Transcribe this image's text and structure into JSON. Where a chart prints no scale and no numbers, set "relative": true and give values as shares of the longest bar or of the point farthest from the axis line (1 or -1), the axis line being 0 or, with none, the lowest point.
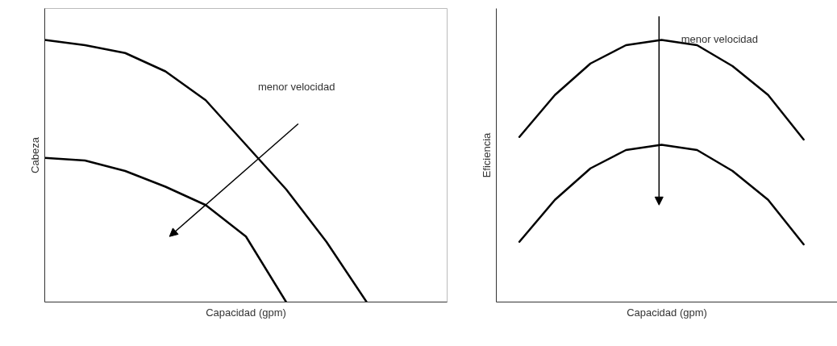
{
  "chart_data": [
    {
      "type": "line",
      "relative": true,
      "xlabel": "Capacidad (gpm)",
      "ylabel": "Cabeza",
      "annotations": [
        "menor velocidad"
      ],
      "categories": [
        null,
        null,
        null,
        null,
        null,
        null,
        null,
        null,
        null,
        null,
        null
      ],
      "series": [
        {
          "color": "#000000",
          "values": [
            1.0,
            0.98,
            0.95,
            0.88,
            0.77,
            0.6,
            0.43,
            0.23,
            0.0,
            null,
            null
          ]
        },
        {
          "color": "#000000",
          "values": [
            0.55,
            0.54,
            0.5,
            0.44,
            0.37,
            0.25,
            0.0,
            null,
            null,
            null,
            null
          ]
        }
      ]
    },
    {
      "type": "line",
      "relative": true,
      "xlabel": "Capacidad (gpm)",
      "ylabel": "Eficiencia",
      "annotations": [
        "menor velocidad"
      ],
      "categories": [
        null,
        null,
        null,
        null,
        null,
        null,
        null,
        null,
        null
      ],
      "series": [
        {
          "color": "#000000",
          "values": [
            0.63,
            0.79,
            0.91,
            0.98,
            1.0,
            0.98,
            0.9,
            0.79,
            0.62
          ]
        },
        {
          "color": "#000000",
          "values": [
            0.23,
            0.39,
            0.51,
            0.58,
            0.6,
            0.58,
            0.5,
            0.39,
            0.22
          ]
        }
      ]
    }
  ]
}
